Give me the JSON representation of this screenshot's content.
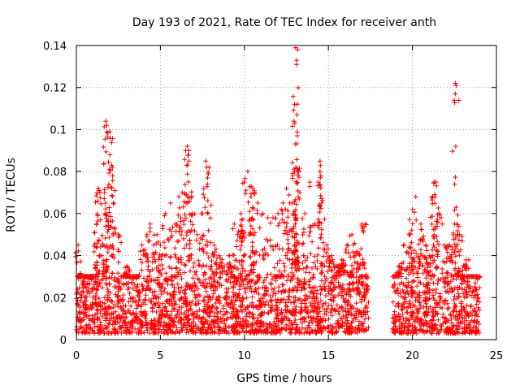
{
  "chart_data": {
    "type": "scatter",
    "title": "Day 193 of 2021, Rate Of TEC Index for receiver anth",
    "xlabel": "GPS time / hours",
    "ylabel": "ROTI / TECUs",
    "xlim": [
      0,
      25
    ],
    "ylim": [
      0,
      0.14
    ],
    "x_ticks": [
      0,
      5,
      10,
      15,
      20,
      25
    ],
    "y_ticks": [
      0,
      0.02,
      0.04,
      0.06,
      0.08,
      0.1,
      0.12,
      0.14
    ],
    "x_tick_labels": [
      "0",
      "5",
      "10",
      "15",
      "20",
      "25"
    ],
    "y_tick_labels": [
      "0",
      "0.02",
      "0.04",
      "0.06",
      "0.08",
      "0.1",
      "0.12",
      "0.14"
    ],
    "grid": true,
    "marker": "+",
    "color": "#ff0000",
    "gaps_hours": [
      [
        17.4,
        18.8
      ]
    ],
    "series": [
      {
        "name": "ROTI",
        "x": [
          0.1,
          0.3,
          0.5,
          0.8,
          1.0,
          1.2,
          1.4,
          1.5,
          1.7,
          1.8,
          2.0,
          2.1,
          2.2,
          2.5,
          2.8,
          3.0,
          3.3,
          3.6,
          3.9,
          4.2,
          4.4,
          4.6,
          4.8,
          5.0,
          5.3,
          5.6,
          5.9,
          6.1,
          6.3,
          6.5,
          6.7,
          6.9,
          7.2,
          7.5,
          7.7,
          7.9,
          8.2,
          8.5,
          8.8,
          9.1,
          9.4,
          9.6,
          9.8,
          10.0,
          10.2,
          10.4,
          10.6,
          10.8,
          11.1,
          11.4,
          11.7,
          12.0,
          12.3,
          12.5,
          12.7,
          12.9,
          13.0,
          13.1,
          13.3,
          13.6,
          13.9,
          14.2,
          14.5,
          14.6,
          14.9,
          15.2,
          15.5,
          15.8,
          16.1,
          16.4,
          16.7,
          17.0,
          17.2,
          18.9,
          19.2,
          19.5,
          19.8,
          20.0,
          20.2,
          20.5,
          20.8,
          21.0,
          21.2,
          21.4,
          21.6,
          21.9,
          22.2,
          22.5,
          22.6,
          22.8,
          23.1,
          23.4,
          23.7,
          23.9,
          1.75,
          1.8,
          2.1,
          2.15,
          13.05,
          13.1,
          13.1,
          13.15,
          12.95,
          13.0,
          22.55,
          22.6,
          6.6,
          6.7,
          7.7,
          14.5,
          14.55,
          10.4,
          10.5,
          1.3,
          1.35,
          2.0,
          21.3,
          21.35,
          4.2,
          8.1,
          9.9,
          15.8,
          16.3,
          19.9,
          20.6,
          23.2,
          0.2,
          0.6,
          3.1,
          11.9,
          12.2,
          17.1,
          19.1,
          22.9,
          5.8,
          9.3
        ],
        "y": [
          0.045,
          0.02,
          0.018,
          0.022,
          0.03,
          0.055,
          0.07,
          0.04,
          0.06,
          0.035,
          0.088,
          0.072,
          0.065,
          0.05,
          0.03,
          0.035,
          0.02,
          0.025,
          0.045,
          0.05,
          0.055,
          0.045,
          0.05,
          0.045,
          0.06,
          0.065,
          0.055,
          0.068,
          0.07,
          0.09,
          0.085,
          0.06,
          0.05,
          0.06,
          0.045,
          0.082,
          0.045,
          0.04,
          0.035,
          0.04,
          0.055,
          0.05,
          0.06,
          0.075,
          0.08,
          0.068,
          0.07,
          0.065,
          0.06,
          0.058,
          0.058,
          0.06,
          0.065,
          0.072,
          0.065,
          0.06,
          0.045,
          0.05,
          0.07,
          0.06,
          0.075,
          0.055,
          0.08,
          0.065,
          0.045,
          0.04,
          0.035,
          0.038,
          0.045,
          0.05,
          0.042,
          0.055,
          0.055,
          0.025,
          0.035,
          0.045,
          0.05,
          0.062,
          0.068,
          0.055,
          0.045,
          0.04,
          0.068,
          0.075,
          0.06,
          0.045,
          0.045,
          0.055,
          0.063,
          0.05,
          0.035,
          0.03,
          0.025,
          0.02,
          0.104,
          0.102,
          0.083,
          0.082,
          0.139,
          0.131,
          0.133,
          0.097,
          0.104,
          0.103,
          0.122,
          0.121,
          0.092,
          0.09,
          0.085,
          0.085,
          0.078,
          0.073,
          0.072,
          0.072,
          0.071,
          0.099,
          0.075,
          0.068,
          0.049,
          0.041,
          0.052,
          0.036,
          0.032,
          0.044,
          0.048,
          0.038,
          0.012,
          0.015,
          0.014,
          0.016,
          0.013,
          0.012,
          0.011,
          0.014,
          0.015,
          0.016
        ]
      }
    ],
    "dense_band": {
      "y_min": 0.003,
      "y_median": 0.015,
      "y_max": 0.03
    }
  }
}
